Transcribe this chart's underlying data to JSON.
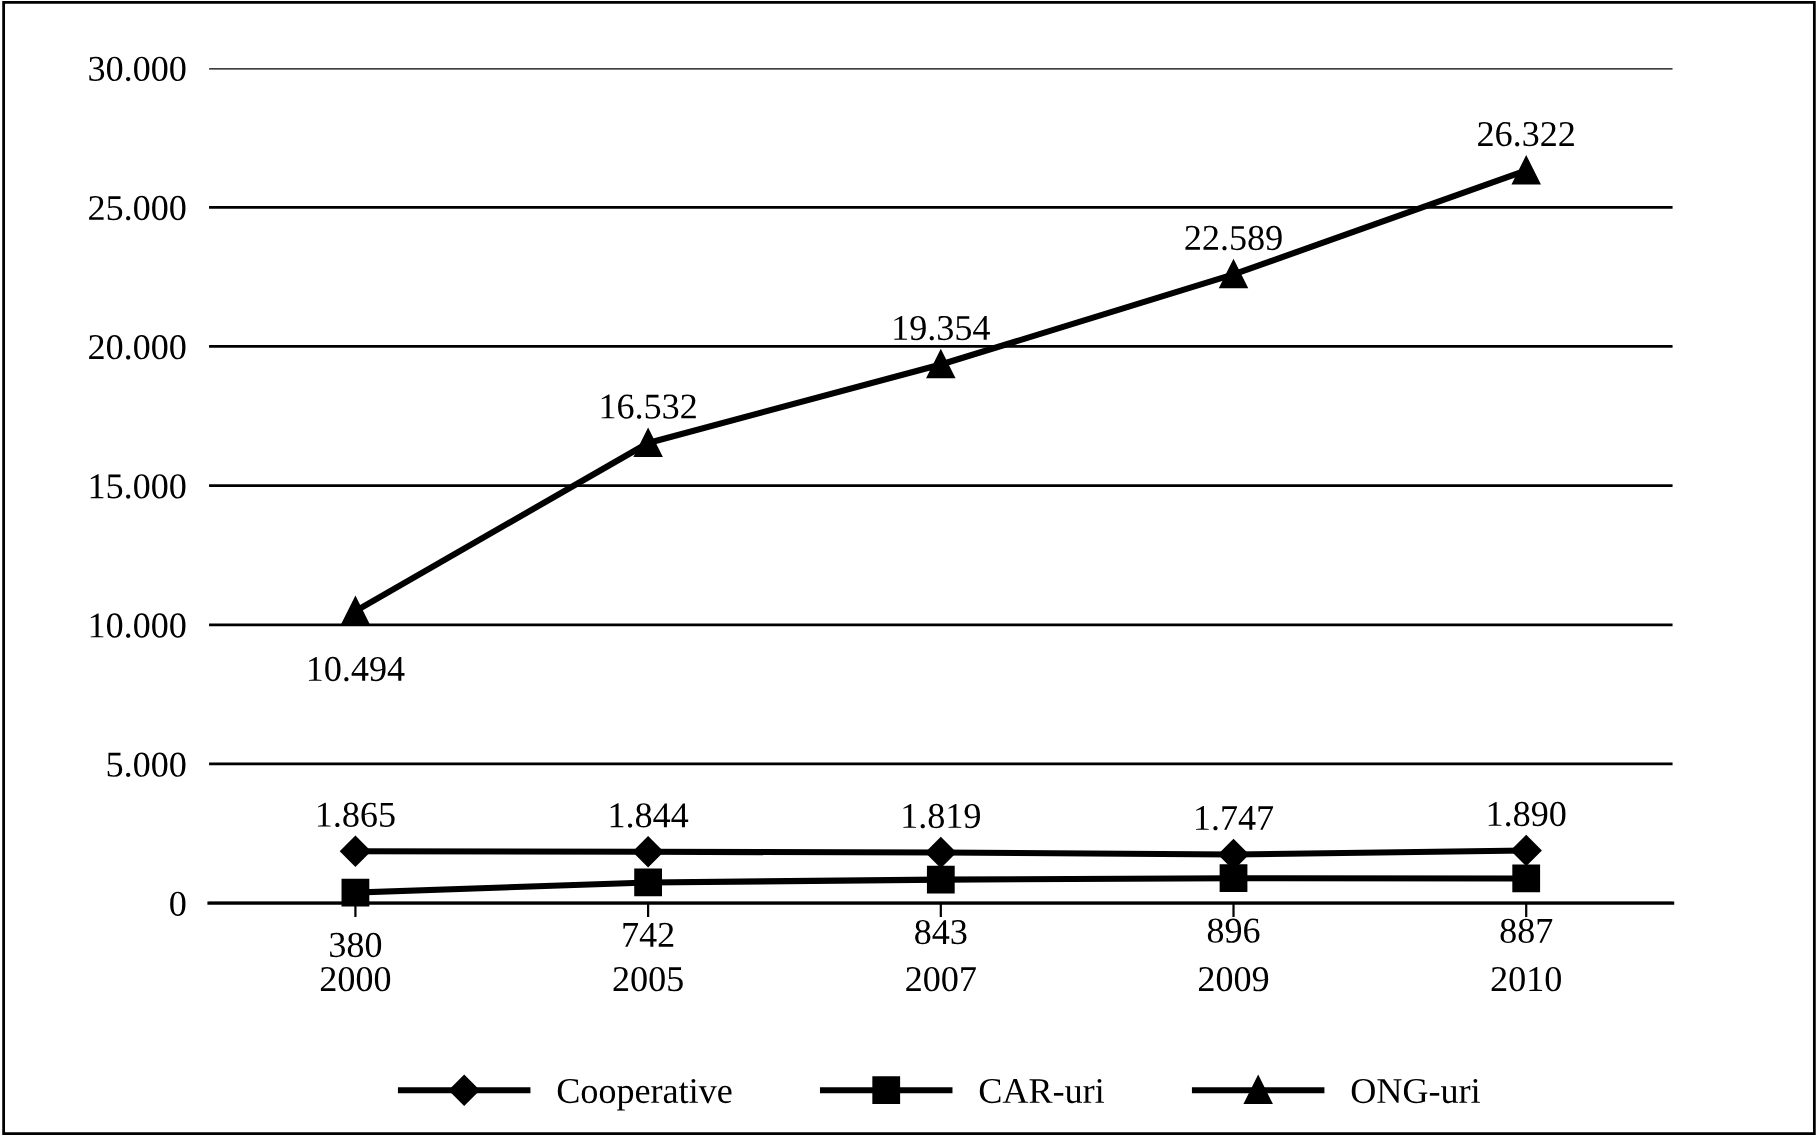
{
  "chart_data": {
    "type": "line",
    "categories": [
      "2000",
      "2005",
      "2007",
      "2009",
      "2010"
    ],
    "series": [
      {
        "name": "Cooperative",
        "color": "#000000",
        "marker": "diamond",
        "values": [
          1865,
          1844,
          1819,
          1747,
          1890
        ],
        "value_labels": [
          "1.865",
          "1.844",
          "1.819",
          "1.747",
          "1.890"
        ]
      },
      {
        "name": "CAR-uri",
        "color": "#000000",
        "marker": "square",
        "values": [
          380,
          742,
          843,
          896,
          887
        ],
        "value_labels": [
          "380",
          "742",
          "843",
          "896",
          "887"
        ]
      },
      {
        "name": "ONG-uri",
        "color": "#000000",
        "marker": "triangle",
        "values": [
          10494,
          16532,
          19354,
          22589,
          26322
        ],
        "value_labels": [
          "10.494",
          "16.532",
          "19.354",
          "22.589",
          "26.322"
        ]
      }
    ],
    "ylim": [
      0,
      30000
    ],
    "yticks": [
      0,
      {
        "value": 5000,
        "label": "5.000"
      },
      {
        "value": 10000,
        "label": "10.000"
      },
      {
        "value": 15000,
        "label": "15.000"
      },
      {
        "value": 20000,
        "label": "20.000"
      },
      {
        "value": 25000,
        "label": "25.000"
      },
      {
        "value": 30000,
        "label": "30.000"
      }
    ],
    "grid": "y",
    "legend": "bottom",
    "line_style": "solid"
  }
}
